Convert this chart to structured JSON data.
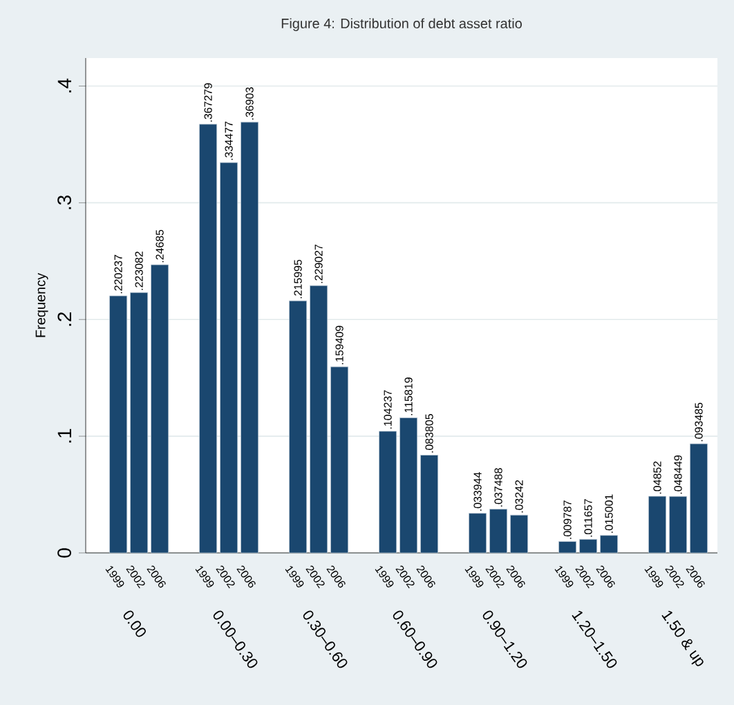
{
  "chart_data": {
    "type": "bar",
    "title": "Figure 4: Distribution of debt asset ratio",
    "ylabel": "Frequency",
    "categories": [
      "0.00",
      "0.00–0.30",
      "0.30–0.60",
      "0.60–0.90",
      "0.90–1.20",
      "1.20–1.50",
      "1.50 & up"
    ],
    "series": [
      {
        "name": "1999",
        "color": "#1a476f",
        "values": [
          0.220237,
          0.367279,
          0.215995,
          0.104237,
          0.033944,
          0.009787,
          0.04852
        ],
        "value_labels": [
          ".220237",
          ".367279",
          ".215995",
          ".104237",
          ".033944",
          ".009787",
          ".04852"
        ]
      },
      {
        "name": "2002",
        "color": "#1a476f",
        "values": [
          0.223082,
          0.334477,
          0.229027,
          0.115819,
          0.037488,
          0.011657,
          0.048449
        ],
        "value_labels": [
          ".223082",
          ".334477",
          ".229027",
          ".115819",
          ".037488",
          ".011657",
          ".048449"
        ]
      },
      {
        "name": "2006",
        "color": "#1a476f",
        "values": [
          0.24685,
          0.36903,
          0.159409,
          0.083805,
          0.03242,
          0.015001,
          0.093485
        ],
        "value_labels": [
          ".24685",
          ".36903",
          ".159409",
          ".083805",
          ".03242",
          ".015001",
          ".093485"
        ]
      }
    ],
    "ylim": [
      0,
      0.424
    ],
    "yticks": [
      {
        "value": 0,
        "label": "0"
      },
      {
        "value": 0.1,
        "label": ".1"
      },
      {
        "value": 0.2,
        "label": ".2"
      },
      {
        "value": 0.3,
        "label": ".3"
      },
      {
        "value": 0.4,
        "label": ".4"
      }
    ],
    "grid": "y"
  }
}
